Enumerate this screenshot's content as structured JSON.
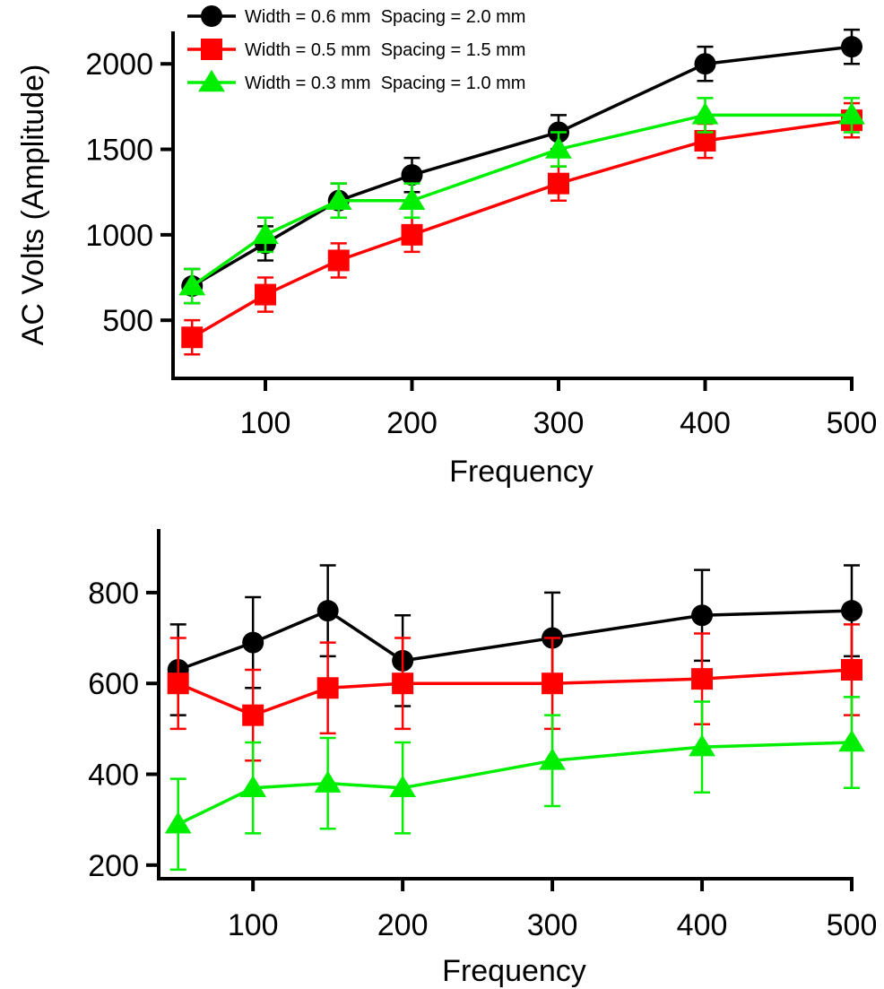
{
  "chart_data": [
    {
      "type": "line",
      "xlabel": "Frequency",
      "ylabel": "AC Volts (Amplitude)",
      "xlim": [
        37,
        500
      ],
      "ylim": [
        160,
        2190
      ],
      "xticks": [
        100,
        200,
        300,
        400,
        500
      ],
      "yticks": [
        500,
        1000,
        1500,
        2000
      ],
      "legend": {
        "position": "top-left"
      },
      "x": [
        50,
        100,
        150,
        200,
        300,
        400,
        500
      ],
      "series": [
        {
          "name": "Width = 0.6 mm  Spacing = 2.0 mm",
          "color": "#000000",
          "marker": "circle",
          "values": [
            700,
            950,
            1200,
            1350,
            1600,
            2000,
            2100
          ],
          "errors": [
            100,
            100,
            100,
            100,
            100,
            100,
            100
          ]
        },
        {
          "name": "Width = 0.5 mm  Spacing = 1.5 mm",
          "color": "#ff0000",
          "marker": "square",
          "values": [
            400,
            650,
            850,
            1000,
            1300,
            1550,
            1670
          ],
          "errors": [
            100,
            100,
            100,
            100,
            100,
            100,
            100
          ]
        },
        {
          "name": "Width = 0.3 mm  Spacing = 1.0 mm",
          "color": "#00ee00",
          "marker": "triangle",
          "values": [
            700,
            1000,
            1200,
            1200,
            1500,
            1700,
            1700
          ],
          "errors": [
            100,
            100,
            100,
            100,
            100,
            100,
            100
          ]
        }
      ]
    },
    {
      "type": "line",
      "xlabel": "Frequency",
      "ylabel": "",
      "xlim": [
        37,
        500
      ],
      "ylim": [
        170,
        940
      ],
      "xticks": [
        100,
        200,
        300,
        400,
        500
      ],
      "yticks": [
        200,
        400,
        600,
        800
      ],
      "x": [
        50,
        100,
        150,
        200,
        300,
        400,
        500
      ],
      "series": [
        {
          "color": "#000000",
          "marker": "circle",
          "values": [
            630,
            690,
            760,
            650,
            700,
            750,
            760
          ],
          "errors": [
            100,
            100,
            100,
            100,
            100,
            100,
            100
          ]
        },
        {
          "color": "#ff0000",
          "marker": "square",
          "values": [
            600,
            530,
            590,
            600,
            600,
            610,
            630
          ],
          "errors": [
            100,
            100,
            100,
            100,
            100,
            100,
            100
          ]
        },
        {
          "color": "#00ee00",
          "marker": "triangle",
          "values": [
            290,
            370,
            380,
            370,
            430,
            460,
            470
          ],
          "errors": [
            100,
            100,
            100,
            100,
            100,
            100,
            100
          ]
        }
      ]
    }
  ]
}
